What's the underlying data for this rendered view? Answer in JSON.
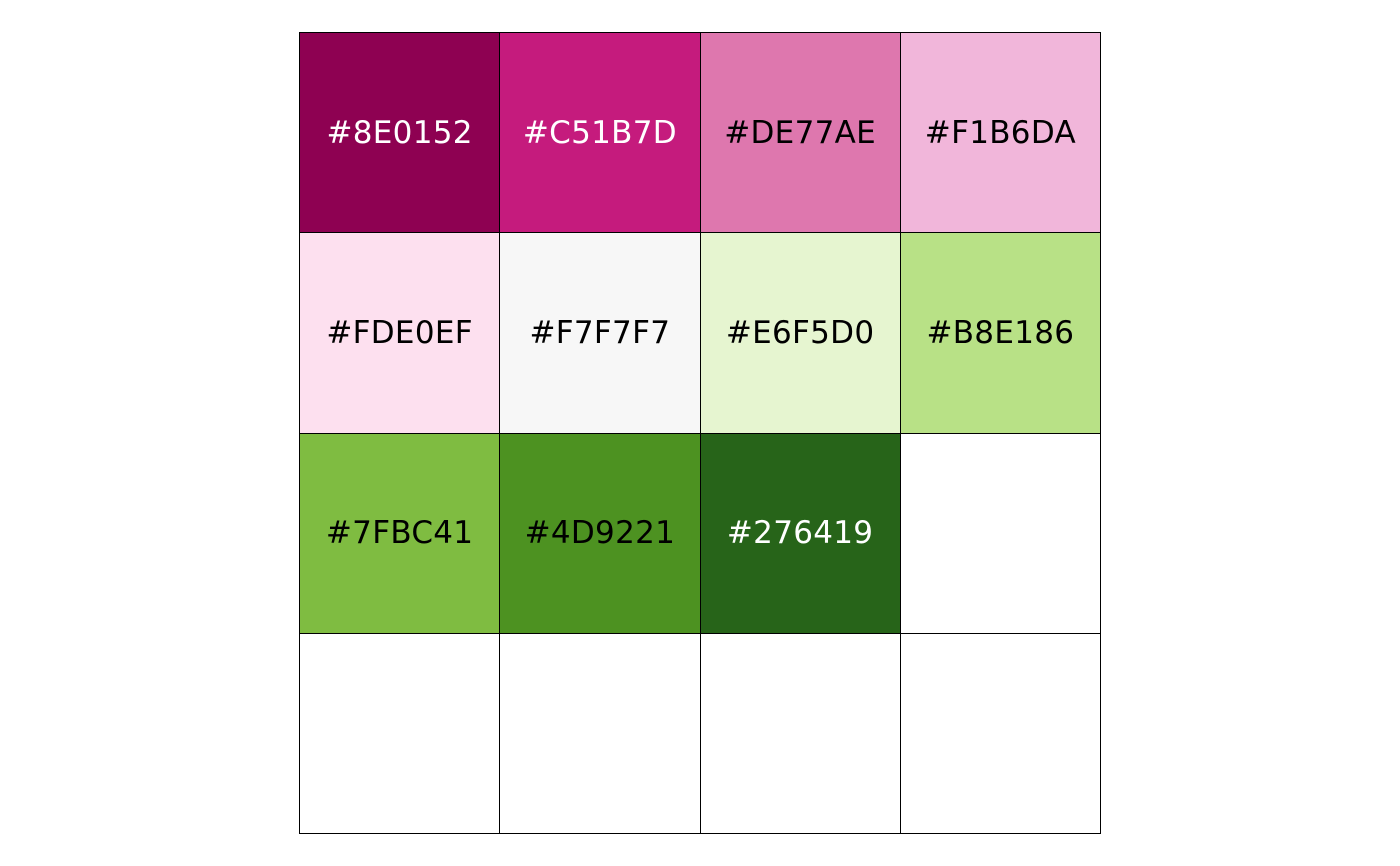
{
  "palette": {
    "swatches": [
      {
        "hex": "#8E0152",
        "label": "#8E0152",
        "text_color": "#FFFFFF"
      },
      {
        "hex": "#C51B7D",
        "label": "#C51B7D",
        "text_color": "#FFFFFF"
      },
      {
        "hex": "#DE77AE",
        "label": "#DE77AE",
        "text_color": "#000000"
      },
      {
        "hex": "#F1B6DA",
        "label": "#F1B6DA",
        "text_color": "#000000"
      },
      {
        "hex": "#FDE0EF",
        "label": "#FDE0EF",
        "text_color": "#000000"
      },
      {
        "hex": "#F7F7F7",
        "label": "#F7F7F7",
        "text_color": "#000000"
      },
      {
        "hex": "#E6F5D0",
        "label": "#E6F5D0",
        "text_color": "#000000"
      },
      {
        "hex": "#B8E186",
        "label": "#B8E186",
        "text_color": "#000000"
      },
      {
        "hex": "#7FBC41",
        "label": "#7FBC41",
        "text_color": "#000000"
      },
      {
        "hex": "#4D9221",
        "label": "#4D9221",
        "text_color": "#000000"
      },
      {
        "hex": "#276419",
        "label": "#276419",
        "text_color": "#FFFFFF"
      },
      {
        "hex": "#FFFFFF",
        "label": "",
        "text_color": "#000000"
      },
      {
        "hex": "#FFFFFF",
        "label": "",
        "text_color": "#000000"
      },
      {
        "hex": "#FFFFFF",
        "label": "",
        "text_color": "#000000"
      },
      {
        "hex": "#FFFFFF",
        "label": "",
        "text_color": "#000000"
      },
      {
        "hex": "#FFFFFF",
        "label": "",
        "text_color": "#000000"
      }
    ]
  }
}
